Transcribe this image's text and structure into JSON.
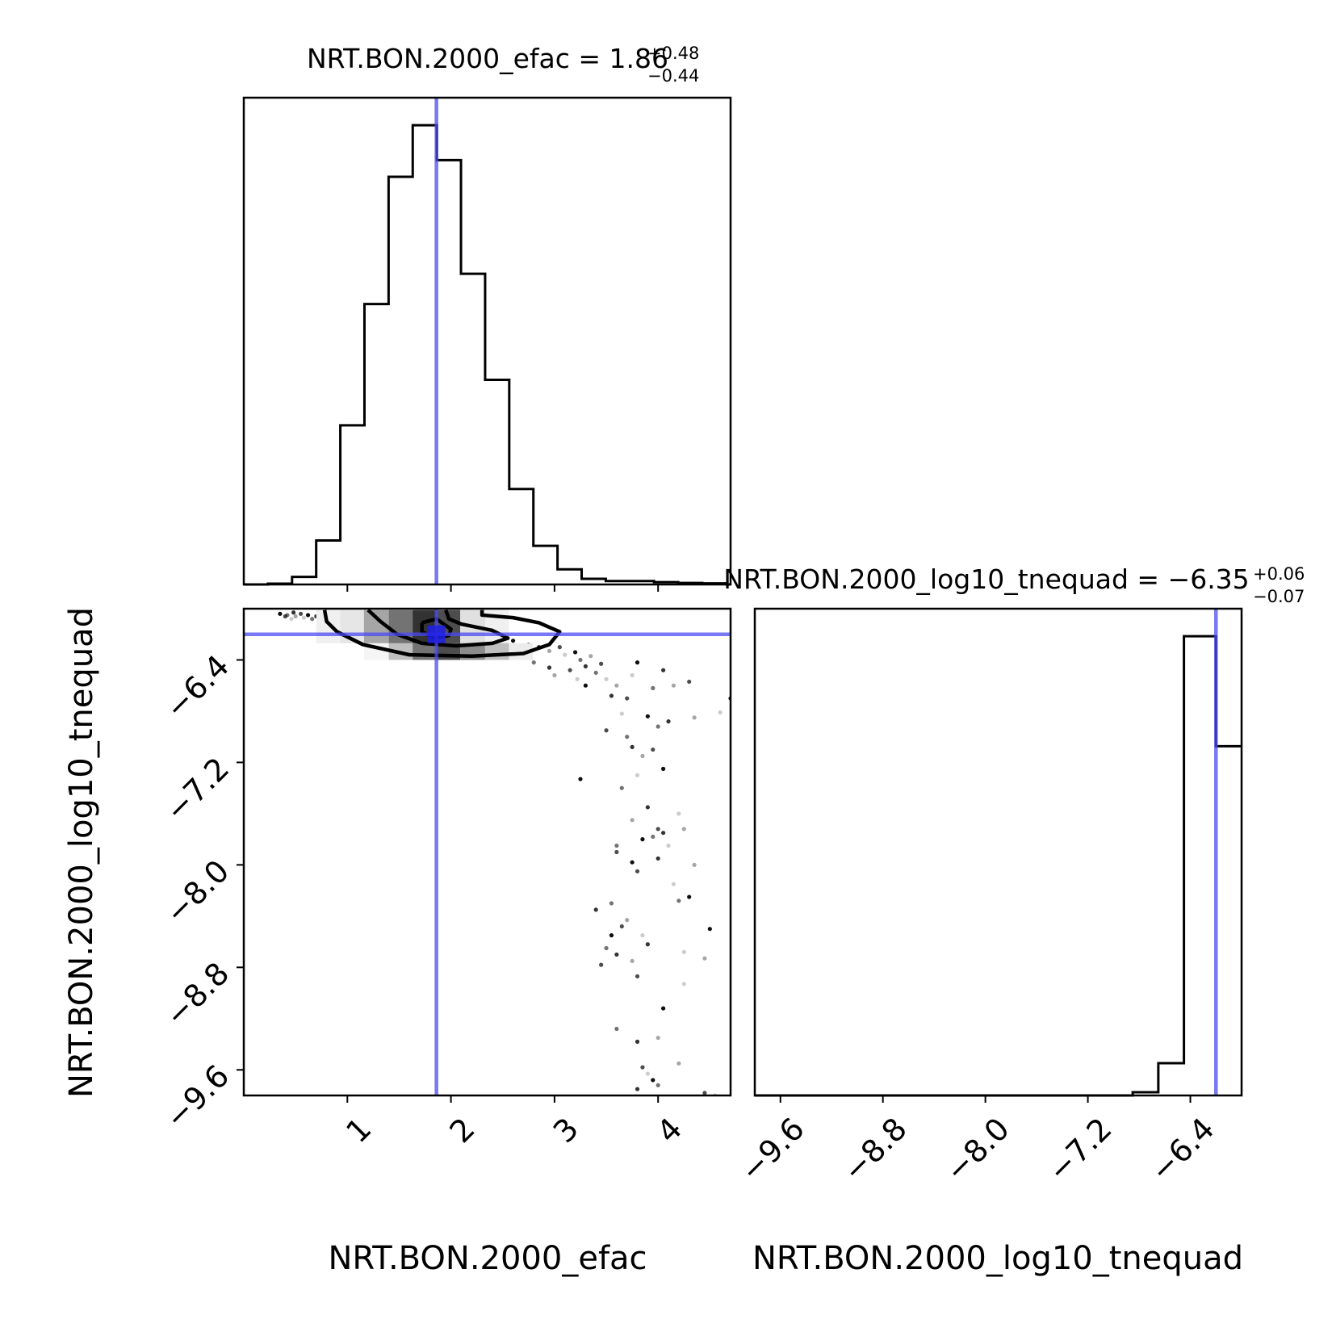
{
  "colors": {
    "truth": "#4b4bf0",
    "histogram": "#000000",
    "scatter": "#000000",
    "axes": "#000000",
    "background": "#ffffff"
  },
  "chart_data": {
    "type": "corner",
    "parameters": [
      "NRT.BON.2000_efac",
      "NRT.BON.2000_log10_tnequad"
    ],
    "panels": [
      {
        "id": "efac-histogram",
        "type": "histogram",
        "title": {
          "prefix": "NRT.BON.2000_efac = ",
          "value": "1.86",
          "plus": "+0.48",
          "minus": "−0.44"
        },
        "xlim": [
          0.0,
          4.7
        ],
        "bin_edges": [
          0.0,
          0.233,
          0.466,
          0.699,
          0.932,
          1.165,
          1.398,
          1.631,
          1.864,
          2.097,
          2.33,
          2.563,
          2.796,
          3.029,
          3.262,
          3.495,
          3.728,
          3.961,
          4.194,
          4.427,
          4.66,
          4.7
        ],
        "counts": [
          0.0,
          0.1,
          1.0,
          5.8,
          21.0,
          37.0,
          53.8,
          60.6,
          56.0,
          41.0,
          27.0,
          12.6,
          5.1,
          2.0,
          0.75,
          0.45,
          0.45,
          0.3,
          0.2,
          0.15,
          0.0
        ],
        "truth": 1.86
      },
      {
        "id": "joint-scatter",
        "type": "scatter",
        "xlabel": "NRT.BON.2000_efac",
        "ylabel": "NRT.BON.2000_log10_tnequad",
        "xlim": [
          0.0,
          4.7
        ],
        "ylim": [
          -9.8,
          -6.0
        ],
        "xticks": [
          "1",
          "2",
          "3",
          "4"
        ],
        "xtick_values": [
          1,
          2,
          3,
          4
        ],
        "yticks": [
          "−6.4",
          "−7.2",
          "−8.0",
          "−8.8",
          "−9.6"
        ],
        "ytick_values": [
          -6.4,
          -7.2,
          -8.0,
          -8.8,
          -9.6
        ],
        "truth": {
          "x": 1.86,
          "y": -6.2
        },
        "density_bins": [
          {
            "x0": 0.7,
            "x1": 0.93,
            "y0": -6.27,
            "y1": -6.01,
            "shade": 0.06
          },
          {
            "x0": 0.93,
            "x1": 1.16,
            "y0": -6.27,
            "y1": -6.01,
            "shade": 0.1
          },
          {
            "x0": 1.16,
            "x1": 1.4,
            "y0": -6.27,
            "y1": -6.01,
            "shade": 0.35
          },
          {
            "x0": 1.4,
            "x1": 1.63,
            "y0": -6.27,
            "y1": -6.01,
            "shade": 0.55
          },
          {
            "x0": 1.63,
            "x1": 1.86,
            "y0": -6.27,
            "y1": -6.01,
            "shade": 0.8
          },
          {
            "x0": 1.86,
            "x1": 2.09,
            "y0": -6.27,
            "y1": -6.01,
            "shade": 0.7
          },
          {
            "x0": 2.09,
            "x1": 2.33,
            "y0": -6.27,
            "y1": -6.01,
            "shade": 0.12
          },
          {
            "x0": 2.33,
            "x1": 2.56,
            "y0": -6.27,
            "y1": -6.01,
            "shade": 0.06
          },
          {
            "x0": 1.16,
            "x1": 1.4,
            "y0": -6.4,
            "y1": -6.27,
            "shade": 0.04
          },
          {
            "x0": 1.4,
            "x1": 1.63,
            "y0": -6.4,
            "y1": -6.27,
            "shade": 0.25
          },
          {
            "x0": 1.63,
            "x1": 1.86,
            "y0": -6.4,
            "y1": -6.27,
            "shade": 0.55
          },
          {
            "x0": 1.86,
            "x1": 2.09,
            "y0": -6.4,
            "y1": -6.27,
            "shade": 0.7
          },
          {
            "x0": 2.09,
            "x1": 2.33,
            "y0": -6.4,
            "y1": -6.27,
            "shade": 0.45
          },
          {
            "x0": 2.33,
            "x1": 2.56,
            "y0": -6.4,
            "y1": -6.27,
            "shade": 0.25
          },
          {
            "x0": 2.56,
            "x1": 2.79,
            "y0": -6.4,
            "y1": -6.27,
            "shade": 0.08
          }
        ],
        "contours": [
          [
            [
              0.78,
              -6.01
            ],
            [
              0.8,
              -6.1
            ],
            [
              0.9,
              -6.18
            ],
            [
              1.15,
              -6.28
            ],
            [
              1.6,
              -6.36
            ],
            [
              2.2,
              -6.37
            ],
            [
              2.7,
              -6.35
            ],
            [
              2.95,
              -6.28
            ],
            [
              3.05,
              -6.18
            ],
            [
              2.85,
              -6.11
            ],
            [
              2.6,
              -6.07
            ],
            [
              2.3,
              -6.05
            ],
            [
              2.3,
              -6.01
            ]
          ],
          [
            [
              1.2,
              -6.01
            ],
            [
              1.32,
              -6.1
            ],
            [
              1.48,
              -6.2
            ],
            [
              1.72,
              -6.27
            ],
            [
              2.05,
              -6.29
            ],
            [
              2.4,
              -6.27
            ],
            [
              2.55,
              -6.23
            ],
            [
              2.4,
              -6.17
            ],
            [
              2.1,
              -6.12
            ],
            [
              1.98,
              -6.08
            ],
            [
              1.95,
              -6.01
            ]
          ],
          [
            [
              1.72,
              -6.11
            ],
            [
              1.86,
              -6.08
            ],
            [
              2.0,
              -6.16
            ],
            [
              1.98,
              -6.21
            ],
            [
              1.84,
              -6.23
            ],
            [
              1.72,
              -6.18
            ],
            [
              1.72,
              -6.11
            ]
          ]
        ],
        "scatter_points": [
          [
            0.35,
            -6.04
          ],
          [
            0.42,
            -6.05
          ],
          [
            0.48,
            -6.03
          ],
          [
            0.5,
            -6.06
          ],
          [
            0.55,
            -6.04
          ],
          [
            0.58,
            -6.07
          ],
          [
            0.62,
            -6.05
          ],
          [
            0.66,
            -6.08
          ],
          [
            0.7,
            -6.06
          ],
          [
            0.73,
            -6.1
          ],
          [
            0.4,
            -6.06
          ],
          [
            0.46,
            -6.08
          ],
          [
            2.6,
            -6.25
          ],
          [
            2.75,
            -6.28
          ],
          [
            2.85,
            -6.3
          ],
          [
            2.95,
            -6.33
          ],
          [
            3.05,
            -6.3
          ],
          [
            3.1,
            -6.36
          ],
          [
            3.2,
            -6.34
          ],
          [
            3.25,
            -6.4
          ],
          [
            3.3,
            -6.45
          ],
          [
            3.35,
            -6.37
          ],
          [
            3.45,
            -6.43
          ],
          [
            3.5,
            -6.55
          ],
          [
            2.7,
            -6.38
          ],
          [
            2.8,
            -6.42
          ],
          [
            2.95,
            -6.46
          ],
          [
            3.0,
            -6.52
          ],
          [
            3.15,
            -6.48
          ],
          [
            3.22,
            -6.55
          ],
          [
            3.3,
            -6.6
          ],
          [
            3.4,
            -6.5
          ],
          [
            3.55,
            -6.68
          ],
          [
            3.6,
            -6.6
          ],
          [
            3.7,
            -6.7
          ],
          [
            3.75,
            -6.52
          ],
          [
            3.8,
            -6.42
          ],
          [
            3.95,
            -6.62
          ],
          [
            4.05,
            -6.48
          ],
          [
            4.15,
            -6.6
          ],
          [
            4.3,
            -6.57
          ],
          [
            3.65,
            -6.82
          ],
          [
            3.9,
            -6.84
          ],
          [
            4.0,
            -6.92
          ],
          [
            4.1,
            -6.88
          ],
          [
            4.35,
            -6.85
          ],
          [
            3.5,
            -6.95
          ],
          [
            4.6,
            -6.81
          ],
          [
            3.25,
            -7.33
          ],
          [
            3.7,
            -7.0
          ],
          [
            3.75,
            -7.08
          ],
          [
            3.85,
            -7.15
          ],
          [
            3.95,
            -7.1
          ],
          [
            3.8,
            -7.3
          ],
          [
            4.05,
            -7.25
          ],
          [
            3.65,
            -7.4
          ],
          [
            3.9,
            -7.55
          ],
          [
            3.75,
            -7.65
          ],
          [
            4.0,
            -7.72
          ],
          [
            4.2,
            -7.6
          ],
          [
            3.85,
            -7.8
          ],
          [
            3.95,
            -7.78
          ],
          [
            4.05,
            -7.75
          ],
          [
            4.25,
            -7.72
          ],
          [
            3.6,
            -7.9
          ],
          [
            4.1,
            -7.85
          ],
          [
            3.75,
            -7.98
          ],
          [
            3.6,
            -7.85
          ],
          [
            4.0,
            -7.95
          ],
          [
            4.35,
            -8.0
          ],
          [
            3.8,
            -8.05
          ],
          [
            4.15,
            -8.15
          ],
          [
            4.3,
            -8.25
          ],
          [
            3.55,
            -8.3
          ],
          [
            3.4,
            -8.35
          ],
          [
            3.7,
            -8.43
          ],
          [
            3.65,
            -8.48
          ],
          [
            3.85,
            -8.55
          ],
          [
            3.55,
            -8.55
          ],
          [
            3.5,
            -8.65
          ],
          [
            3.6,
            -8.7
          ],
          [
            3.75,
            -8.75
          ],
          [
            3.45,
            -8.78
          ],
          [
            4.25,
            -8.68
          ],
          [
            4.5,
            -8.5
          ],
          [
            4.2,
            -8.28
          ],
          [
            3.9,
            -8.62
          ],
          [
            4.45,
            -8.73
          ],
          [
            3.8,
            -8.87
          ],
          [
            4.25,
            -8.93
          ],
          [
            4.05,
            -9.12
          ],
          [
            3.6,
            -9.28
          ],
          [
            3.8,
            -9.38
          ],
          [
            4.0,
            -9.35
          ],
          [
            3.85,
            -9.58
          ],
          [
            3.9,
            -9.63
          ],
          [
            3.95,
            -9.68
          ],
          [
            4.0,
            -9.72
          ],
          [
            3.8,
            -9.75
          ],
          [
            4.2,
            -9.55
          ],
          [
            4.45,
            -9.78
          ],
          [
            4.55,
            -9.8
          ],
          [
            4.7,
            -6.7
          ]
        ]
      },
      {
        "id": "tnequad-histogram",
        "type": "histogram",
        "title": {
          "prefix": "NRT.BON.2000_log10_tnequad = −6.35",
          "value": "",
          "plus": "+0.06",
          "minus": "−0.07"
        },
        "xlabel": "NRT.BON.2000_log10_tnequad",
        "xlim": [
          -9.8,
          -6.0
        ],
        "xticks": [
          "−9.6",
          "−8.8",
          "−8.0",
          "−7.2",
          "−6.4"
        ],
        "xtick_values": [
          -9.6,
          -8.8,
          -8.0,
          -7.2,
          -6.4
        ],
        "bin_edges": [
          -9.8,
          -6.85,
          -6.65,
          -6.45,
          -6.2,
          -6.0
        ],
        "counts": [
          0.0,
          0.5,
          5.0,
          71.0,
          54.0
        ],
        "truth": -6.2
      }
    ]
  }
}
